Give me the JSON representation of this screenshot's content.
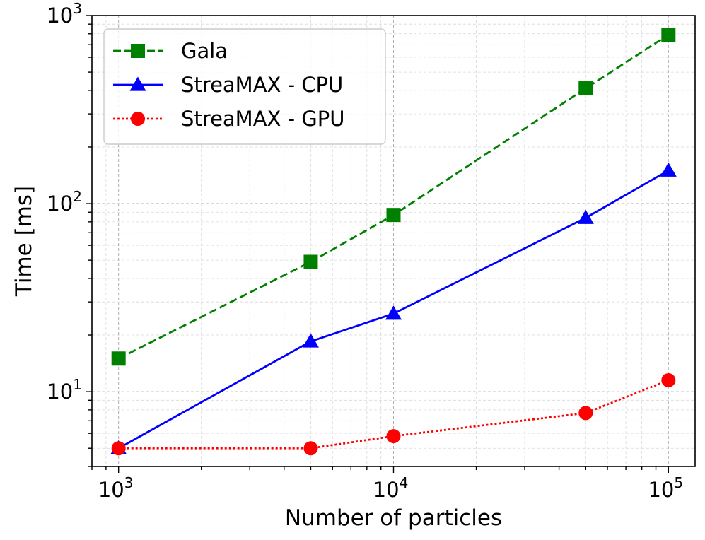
{
  "chart_data": {
    "type": "line",
    "xscale": "log",
    "yscale": "log",
    "xlim": [
      800,
      125000
    ],
    "ylim": [
      4.0,
      1000
    ],
    "grid": true,
    "legend_position": "upper-left",
    "xlabel": "Number of particles",
    "ylabel": "Time [ms]",
    "x_ticks": [
      {
        "value": 1000,
        "base": "10",
        "exp": "3"
      },
      {
        "value": 10000,
        "base": "10",
        "exp": "4"
      },
      {
        "value": 100000,
        "base": "10",
        "exp": "5"
      }
    ],
    "y_ticks": [
      {
        "value": 10,
        "base": "10",
        "exp": "1"
      },
      {
        "value": 100,
        "base": "10",
        "exp": "2"
      },
      {
        "value": 1000,
        "base": "10",
        "exp": "3"
      }
    ],
    "x": [
      1000,
      5000,
      10000,
      50000,
      100000
    ],
    "series": [
      {
        "name": "Gala",
        "color": "#008000",
        "line": "dashed",
        "marker": "square",
        "values": [
          15,
          49,
          87,
          410,
          790
        ]
      },
      {
        "name": "StreaMAX - CPU",
        "color": "#0000ff",
        "line": "solid",
        "marker": "triangle",
        "values": [
          5.0,
          18.5,
          26,
          84,
          150
        ]
      },
      {
        "name": "StreaMAX - GPU",
        "color": "#ff0000",
        "line": "dotted",
        "marker": "circle",
        "values": [
          5.0,
          5.0,
          5.8,
          7.7,
          11.5
        ]
      }
    ]
  }
}
